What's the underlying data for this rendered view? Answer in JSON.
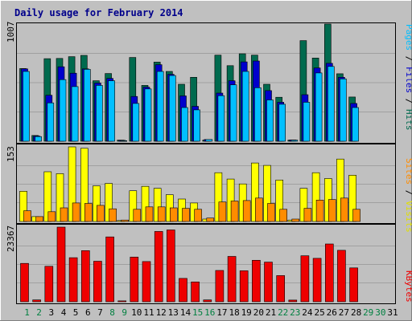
{
  "title": "Daily usage for February 2014",
  "colors": {
    "background": "#c0c0c0",
    "hits": "#006a4e",
    "files": "#0000cc",
    "pages": "#00bfff",
    "visits": "#ffff00",
    "sites": "#ff8c00",
    "kbytes": "#ee0000",
    "weekday_label": "#000000",
    "weekend_label": "#008040",
    "gridline": "#808080"
  },
  "chart_data": [
    {
      "type": "bar",
      "panel": "hits-files-pages",
      "ymax_label": "1007",
      "ylim": [
        0,
        1007
      ],
      "legend": [
        "Pages",
        "Files",
        "Hits"
      ],
      "categories": [
        1,
        2,
        3,
        4,
        5,
        6,
        7,
        8,
        9,
        10,
        11,
        12,
        13,
        14,
        15,
        16,
        17,
        18,
        19,
        20,
        21,
        22,
        23,
        24,
        25,
        26,
        27,
        28,
        29,
        30,
        31
      ],
      "series": [
        {
          "name": "Hits",
          "values": [
            625,
            50,
            710,
            712,
            727,
            738,
            520,
            582,
            10,
            720,
            480,
            680,
            600,
            490,
            550,
            10,
            740,
            650,
            752,
            740,
            490,
            378,
            10,
            865,
            715,
            1007,
            580,
            380,
            0,
            0,
            0
          ]
        },
        {
          "name": "Files",
          "values": [
            622,
            45,
            395,
            640,
            585,
            622,
            500,
            540,
            8,
            385,
            465,
            658,
            575,
            390,
            300,
            15,
            414,
            520,
            682,
            690,
            435,
            335,
            12,
            400,
            630,
            670,
            550,
            325,
            0,
            0,
            0
          ]
        },
        {
          "name": "Pages",
          "values": [
            600,
            40,
            330,
            530,
            470,
            618,
            480,
            520,
            5,
            325,
            450,
            600,
            565,
            290,
            270,
            15,
            392,
            485,
            600,
            460,
            355,
            318,
            10,
            335,
            587,
            643,
            536,
            290,
            0,
            0,
            0
          ]
        }
      ]
    },
    {
      "type": "bar",
      "panel": "visits-sites",
      "ymax_label": "153",
      "ylim": [
        0,
        153
      ],
      "legend": [
        "Sites",
        "Visits"
      ],
      "categories": [
        1,
        2,
        3,
        4,
        5,
        6,
        7,
        8,
        9,
        10,
        11,
        12,
        13,
        14,
        15,
        16,
        17,
        18,
        19,
        20,
        21,
        22,
        23,
        24,
        25,
        26,
        27,
        28,
        29,
        30,
        31
      ],
      "series": [
        {
          "name": "Visits",
          "values": [
            62,
            10,
            102,
            98,
            153,
            150,
            73,
            78,
            2,
            63,
            72,
            68,
            55,
            46,
            38,
            5,
            100,
            87,
            77,
            120,
            115,
            85,
            3,
            68,
            100,
            88,
            128,
            95,
            0,
            0,
            0
          ]
        },
        {
          "name": "Sites",
          "values": [
            22,
            10,
            20,
            28,
            38,
            37,
            33,
            26,
            3,
            25,
            30,
            30,
            28,
            27,
            25,
            7,
            40,
            42,
            43,
            48,
            37,
            25,
            5,
            27,
            44,
            45,
            48,
            25,
            0,
            0,
            0
          ]
        }
      ]
    },
    {
      "type": "bar",
      "panel": "kbytes",
      "ymax_label": "23367",
      "ylim": [
        0,
        23367
      ],
      "legend": [
        "KBytes"
      ],
      "categories": [
        1,
        2,
        3,
        4,
        5,
        6,
        7,
        8,
        9,
        10,
        11,
        12,
        13,
        14,
        15,
        16,
        17,
        18,
        19,
        20,
        21,
        22,
        23,
        24,
        25,
        26,
        27,
        28,
        29,
        30,
        31
      ],
      "series": [
        {
          "name": "KBytes",
          "values": [
            12000,
            580,
            11100,
            23367,
            13800,
            16000,
            12700,
            20300,
            280,
            14000,
            12600,
            22000,
            22500,
            7300,
            6200,
            580,
            9800,
            14200,
            9700,
            13000,
            12400,
            8200,
            530,
            14400,
            13600,
            18100,
            16100,
            10600,
            0,
            0,
            0
          ]
        }
      ]
    }
  ],
  "day_labels": [
    "1",
    "2",
    "3",
    "4",
    "5",
    "6",
    "7",
    "8",
    "9",
    "10",
    "11",
    "12",
    "13",
    "14",
    "15",
    "16",
    "17",
    "18",
    "19",
    "20",
    "21",
    "22",
    "23",
    "24",
    "25",
    "26",
    "27",
    "28",
    "29",
    "30",
    "31"
  ],
  "weekend_days": [
    1,
    2,
    8,
    9,
    15,
    16,
    22,
    23,
    29,
    30
  ]
}
